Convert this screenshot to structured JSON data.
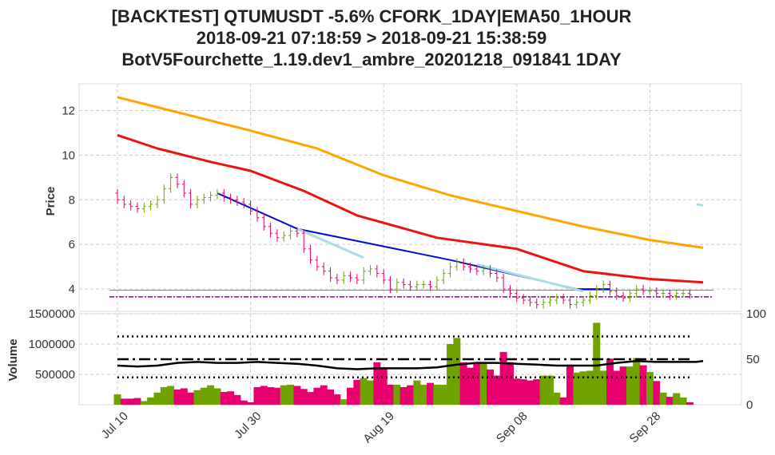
{
  "chart_data": {
    "type": "candlestick",
    "title_lines": [
      "[BACKTEST] QTUMUSDT -5.6% CFORK_1DAY|EMA50_1HOUR",
      "2018-09-21 07:18:59 > 2018-09-21 15:38:59",
      "BotV5Fourchette_1.19.dev1_ambre_20201218_091841 1DAY"
    ],
    "ylabel_price": "Price",
    "ylabel_volume": "Volume",
    "x_ticks": [
      "Jul 10",
      "Jul 30",
      "Aug 19",
      "Sep 08",
      "Sep 28"
    ],
    "price_ticks": [
      "4",
      "6",
      "8",
      "10",
      "12"
    ],
    "volume_ticks": [
      "500000",
      "1000000",
      "1500000"
    ],
    "right_ticks": [
      "0",
      "50",
      "100"
    ],
    "colors": {
      "up": "#6fa300",
      "down": "#e8006f",
      "ema_orange": "#ffa500",
      "ema_red": "#ee1111",
      "trend_blue": "#0011cc",
      "trend_light": "#aadbe8",
      "level_green": "#44aa44",
      "level_purple": "#880088",
      "grid": "#cccccc"
    },
    "start_day": 0,
    "price_ylim": [
      3.0,
      13.2
    ],
    "volume_ylim": [
      0,
      1500000
    ],
    "right_ylim": [
      0,
      100
    ],
    "closes": [
      8.0,
      7.8,
      7.7,
      7.6,
      7.7,
      7.8,
      8.0,
      8.5,
      9.0,
      8.7,
      8.3,
      7.8,
      8.0,
      8.1,
      8.2,
      8.3,
      8.1,
      8.0,
      7.9,
      7.8,
      7.5,
      7.2,
      6.8,
      6.5,
      6.3,
      6.4,
      6.6,
      6.5,
      5.8,
      5.3,
      5.0,
      4.8,
      4.5,
      4.4,
      4.6,
      4.5,
      4.4,
      4.8,
      4.9,
      4.7,
      4.4,
      4.0,
      4.3,
      4.2,
      4.1,
      4.2,
      4.2,
      4.1,
      4.4,
      4.7,
      5.0,
      5.2,
      5.0,
      4.9,
      4.8,
      4.9,
      4.7,
      4.5,
      4.0,
      3.8,
      3.6,
      3.5,
      3.4,
      3.3,
      3.4,
      3.5,
      3.6,
      3.5,
      3.3,
      3.4,
      3.5,
      3.7,
      4.0,
      4.2,
      3.9,
      3.7,
      3.6,
      3.8,
      4.0,
      3.9,
      3.9,
      3.8,
      3.8,
      3.7,
      3.8,
      3.8,
      3.75
    ],
    "volumes": [
      170000,
      100000,
      100000,
      110000,
      60000,
      120000,
      200000,
      290000,
      310000,
      250000,
      270000,
      200000,
      240000,
      280000,
      320000,
      270000,
      210000,
      220000,
      160000,
      70000,
      40000,
      290000,
      310000,
      290000,
      280000,
      320000,
      330000,
      310000,
      260000,
      210000,
      280000,
      320000,
      250000,
      170000,
      90000,
      280000,
      410000,
      440000,
      400000,
      700000,
      600000,
      330000,
      330000,
      290000,
      320000,
      400000,
      330000,
      360000,
      330000,
      330000,
      1000000,
      1100000,
      700000,
      610000,
      680000,
      700000,
      580000,
      480000,
      870000,
      700000,
      430000,
      420000,
      400000,
      420000,
      480000,
      480000,
      200000,
      120000,
      660000,
      530000,
      550000,
      560000,
      1350000,
      560000,
      760000,
      560000,
      630000,
      630000,
      770000,
      650000,
      540000,
      390000,
      200000,
      130000,
      190000,
      120000,
      40000
    ],
    "ema_orange": [
      [
        0,
        12.6
      ],
      [
        8,
        12.0
      ],
      [
        20,
        11.1
      ],
      [
        30,
        10.3
      ],
      [
        40,
        9.1
      ],
      [
        50,
        8.2
      ],
      [
        60,
        7.5
      ],
      [
        70,
        6.8
      ],
      [
        80,
        6.2
      ],
      [
        88,
        5.85
      ]
    ],
    "ema_red": [
      [
        0,
        10.9
      ],
      [
        6,
        10.3
      ],
      [
        14,
        9.7
      ],
      [
        20,
        9.3
      ],
      [
        28,
        8.4
      ],
      [
        36,
        7.3
      ],
      [
        48,
        6.3
      ],
      [
        60,
        5.8
      ],
      [
        70,
        4.8
      ],
      [
        80,
        4.45
      ],
      [
        88,
        4.3
      ]
    ],
    "trend_blue": [
      [
        15,
        8.3
      ],
      [
        27,
        6.7
      ],
      [
        50,
        5.3
      ],
      [
        69,
        4.0
      ],
      [
        74,
        4.0
      ]
    ],
    "trend_light_segments": [
      [
        [
          27,
          6.7
        ],
        [
          37,
          5.4
        ]
      ],
      [
        [
          54,
          5.1
        ],
        [
          70,
          3.9
        ]
      ],
      [
        [
          87,
          7.8
        ],
        [
          88,
          7.75
        ]
      ]
    ],
    "level_green": 3.95,
    "level_purple": 3.65,
    "vol_band_top": 75,
    "vol_band_mid": 50,
    "vol_band_bottom": 30,
    "vol_indicator": [
      [
        0,
        43
      ],
      [
        3,
        42
      ],
      [
        6,
        43
      ],
      [
        9,
        46
      ],
      [
        12,
        47
      ],
      [
        15,
        46
      ],
      [
        18,
        46
      ],
      [
        21,
        47
      ],
      [
        24,
        46
      ],
      [
        27,
        45
      ],
      [
        30,
        43
      ],
      [
        33,
        40
      ],
      [
        36,
        39
      ],
      [
        39,
        40
      ],
      [
        42,
        40
      ],
      [
        45,
        40
      ],
      [
        48,
        41
      ],
      [
        51,
        44
      ],
      [
        54,
        46
      ],
      [
        57,
        46
      ],
      [
        60,
        45
      ],
      [
        63,
        44
      ],
      [
        66,
        43
      ],
      [
        69,
        43
      ],
      [
        72,
        43
      ],
      [
        75,
        46
      ],
      [
        78,
        48
      ],
      [
        81,
        47
      ],
      [
        84,
        47
      ],
      [
        87,
        47
      ],
      [
        88,
        48
      ]
    ]
  }
}
